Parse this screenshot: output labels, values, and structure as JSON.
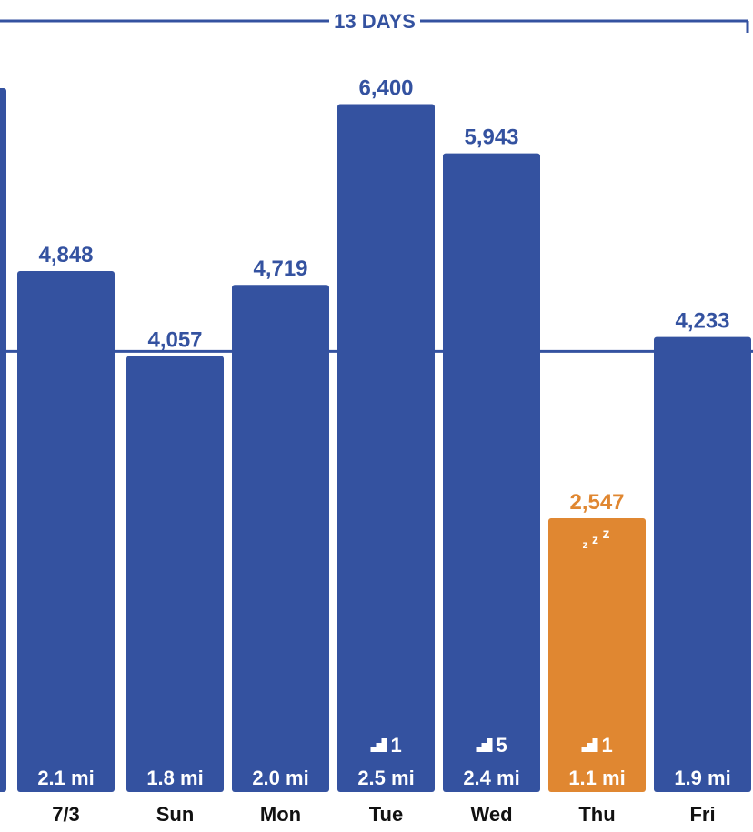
{
  "colors": {
    "bar": "#3452a0",
    "highlight_bar": "#e08731",
    "goal_line": "#3452a0",
    "text": "#111111",
    "bar_text": "#ffffff"
  },
  "header": {
    "range_label": "13 DAYS"
  },
  "chart_data": {
    "type": "bar",
    "y_unit": "steps",
    "ylim": [
      0,
      7200
    ],
    "goal_line_value": 4100,
    "categories": [
      "",
      "7/3",
      "Sun",
      "Mon",
      "Tue",
      "Wed",
      "Thu",
      "Fri"
    ],
    "values": [
      null,
      4848,
      4057,
      4719,
      6400,
      5943,
      2547,
      4233
    ],
    "value_labels": [
      "",
      "4,848",
      "4,057",
      "4,719",
      "6,400",
      "5,943",
      "2,547",
      "4,233"
    ],
    "distances": [
      "",
      "2.1 mi",
      "1.8 mi",
      "2.0 mi",
      "2.5 mi",
      "2.4 mi",
      "1.1 mi",
      "1.9 mi"
    ],
    "floors": [
      null,
      null,
      null,
      null,
      1,
      5,
      1,
      null
    ],
    "highlighted": [
      false,
      false,
      false,
      false,
      false,
      false,
      true,
      false
    ],
    "sleep_icon": [
      false,
      false,
      false,
      false,
      false,
      false,
      true,
      false
    ]
  }
}
